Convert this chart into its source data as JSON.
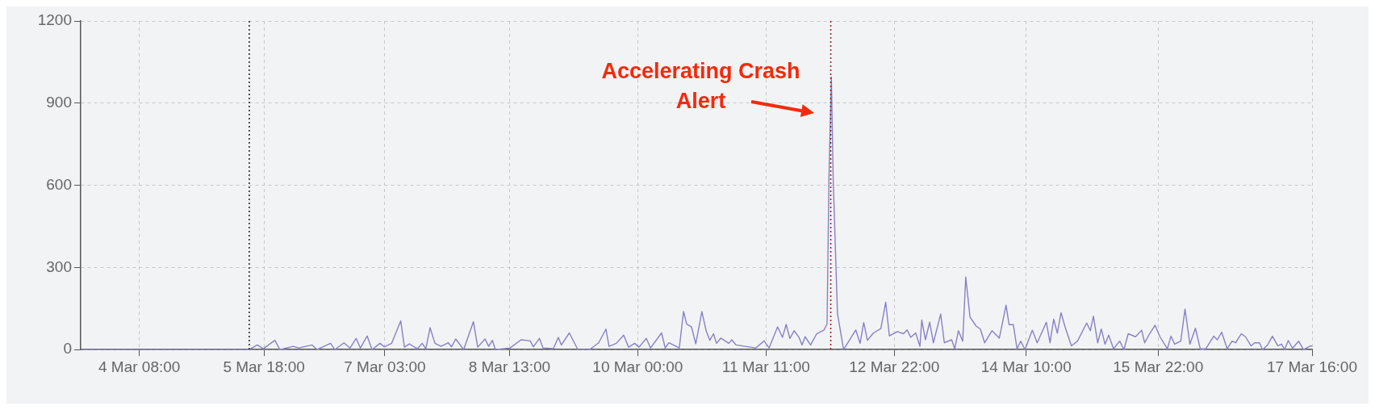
{
  "chart_data": {
    "type": "line",
    "color": "#8581c6",
    "x": [
      "--03-03T16:00",
      "--03-05T14:00",
      "--03-05T16:10",
      "--03-05T17:50",
      "--03-05T21:00",
      "--03-05T22:20",
      "--03-06T02:00",
      "--03-06T03:30",
      "--03-06T07:10",
      "--03-06T08:30",
      "--03-06T12:10",
      "--03-06T13:20",
      "--03-06T15:50",
      "--03-06T17:30",
      "--03-06T19:10",
      "--03-06T20:20",
      "--03-06T22:10",
      "--03-06T23:30",
      "--03-07T01:40",
      "--03-07T02:50",
      "--03-07T04:50",
      "--03-07T07:20",
      "--03-07T08:20",
      "--03-07T09:40",
      "--03-07T11:50",
      "--03-07T13:10",
      "--03-07T14:10",
      "--03-07T15:20",
      "--03-07T16:40",
      "--03-07T18:20",
      "--03-07T20:20",
      "--03-07T21:10",
      "--03-07T22:20",
      "--03-08T00:30",
      "--03-08T03:10",
      "--03-08T04:20",
      "--03-08T06:20",
      "--03-08T07:20",
      "--03-08T08:20",
      "--03-08T09:10",
      "--03-08T13:10",
      "--03-08T16:10",
      "--03-08T18:40",
      "--03-08T19:30",
      "--03-08T21:10",
      "--03-08T22:10",
      "--03-09T01:00",
      "--03-09T02:20",
      "--03-09T03:10",
      "--03-09T05:20",
      "--03-09T07:40",
      "--03-09T10:50",
      "--03-09T13:20",
      "--03-09T15:20",
      "--03-09T16:10",
      "--03-09T18:10",
      "--03-09T20:10",
      "--03-09T21:30",
      "--03-09T23:10",
      "--03-10T00:20",
      "--03-10T02:20",
      "--03-10T03:30",
      "--03-10T06:30",
      "--03-10T07:30",
      "--03-10T08:30",
      "--03-10T11:20",
      "--03-10T12:30",
      "--03-10T13:20",
      "--03-10T14:40",
      "--03-10T15:50",
      "--03-10T17:30",
      "--03-10T18:40",
      "--03-10T19:40",
      "--03-10T20:40",
      "--03-10T21:30",
      "--03-10T22:40",
      "--03-11T00:50",
      "--03-11T01:40",
      "--03-11T02:50",
      "--03-11T08:10",
      "--03-11T10:30",
      "--03-11T11:50",
      "--03-11T14:10",
      "--03-11T15:30",
      "--03-11T16:30",
      "--03-11T17:30",
      "--03-11T18:40",
      "--03-11T20:00",
      "--03-11T20:50",
      "--03-11T21:40",
      "--03-11T23:10",
      "--03-12T00:50",
      "--03-12T02:50",
      "--03-12T03:40",
      "--03-12T04:10",
      "--03-12T04:50",
      "--03-12T05:20",
      "--03-12T06:30",
      "--03-12T08:10",
      "--03-12T11:30",
      "--03-12T12:40",
      "--03-12T13:40",
      "--03-12T14:40",
      "--03-12T16:20",
      "--03-12T18:20",
      "--03-12T19:40",
      "--03-12T20:40",
      "--03-12T22:50",
      "--03-13T00:30",
      "--03-13T01:30",
      "--03-13T02:30",
      "--03-13T03:50",
      "--03-13T05:00",
      "--03-13T05:30",
      "--03-13T06:30",
      "--03-13T07:40",
      "--03-13T08:40",
      "--03-13T10:40",
      "--03-13T11:40",
      "--03-13T13:40",
      "--03-13T14:30",
      "--03-13T15:30",
      "--03-13T16:40",
      "--03-13T17:30",
      "--03-13T18:40",
      "--03-13T20:20",
      "--03-13T21:30",
      "--03-13T22:40",
      "--03-14T00:40",
      "--03-14T02:40",
      "--03-14T04:30",
      "--03-14T05:20",
      "--03-14T06:30",
      "--03-14T07:30",
      "--03-14T08:30",
      "--03-14T09:40",
      "--03-14T11:40",
      "--03-14T13:00",
      "--03-14T15:30",
      "--03-14T16:30",
      "--03-14T17:30",
      "--03-14T18:30",
      "--03-14T19:30",
      "--03-14T20:40",
      "--03-14T22:20",
      "--03-15T00:00",
      "--03-15T02:30",
      "--03-15T03:30",
      "--03-15T04:20",
      "--03-15T05:30",
      "--03-15T06:30",
      "--03-15T07:30",
      "--03-15T08:30",
      "--03-15T09:50",
      "--03-15T11:30",
      "--03-15T12:40",
      "--03-15T13:50",
      "--03-15T15:50",
      "--03-15T17:30",
      "--03-15T18:20",
      "--03-15T19:40",
      "--03-15T21:10",
      "--03-15T22:30",
      "--03-16T00:30",
      "--03-16T01:30",
      "--03-16T02:30",
      "--03-16T04:10",
      "--03-16T05:20",
      "--03-16T06:40",
      "--03-16T08:10",
      "--03-16T09:30",
      "--03-16T11:00",
      "--03-16T13:10",
      "--03-16T14:10",
      "--03-16T15:20",
      "--03-16T16:50",
      "--03-16T18:10",
      "--03-16T19:10",
      "--03-16T20:40",
      "--03-16T21:50",
      "--03-16T23:20",
      "--03-17T00:20",
      "--03-17T01:40",
      "--03-17T02:30",
      "--03-17T03:50",
      "--03-17T05:10",
      "--03-17T06:40",
      "--03-17T07:40",
      "--03-17T08:30",
      "--03-17T09:30",
      "--03-17T10:40",
      "--03-17T12:20",
      "--03-17T13:40",
      "--03-17T15:40",
      "--03-17T16:00"
    ],
    "values": [
      0,
      0,
      17,
      3,
      34,
      0,
      12,
      6,
      17,
      0,
      23,
      0,
      25,
      6,
      41,
      6,
      50,
      0,
      23,
      10,
      23,
      105,
      9,
      21,
      3,
      23,
      3,
      80,
      23,
      12,
      25,
      10,
      39,
      0,
      102,
      9,
      39,
      12,
      34,
      0,
      6,
      36,
      32,
      10,
      41,
      6,
      4,
      45,
      17,
      61,
      0,
      0,
      25,
      75,
      12,
      23,
      53,
      9,
      23,
      9,
      41,
      6,
      61,
      6,
      25,
      6,
      139,
      94,
      83,
      21,
      139,
      69,
      34,
      58,
      23,
      42,
      23,
      36,
      17,
      6,
      32,
      6,
      83,
      45,
      92,
      41,
      69,
      45,
      17,
      47,
      17,
      58,
      72,
      94,
      622,
      995,
      622,
      132,
      0,
      72,
      23,
      99,
      34,
      61,
      77,
      173,
      50,
      66,
      58,
      72,
      45,
      61,
      12,
      108,
      36,
      100,
      25,
      130,
      25,
      36,
      3,
      69,
      31,
      265,
      119,
      86,
      75,
      25,
      69,
      42,
      162,
      91,
      91,
      3,
      31,
      0,
      71,
      25,
      100,
      25,
      111,
      60,
      135,
      80,
      14,
      31,
      97,
      69,
      122,
      25,
      75,
      20,
      53,
      3,
      31,
      0,
      58,
      47,
      71,
      25,
      58,
      89,
      47,
      3,
      49,
      20,
      31,
      148,
      20,
      78,
      3,
      3,
      49,
      36,
      64,
      3,
      31,
      25,
      58,
      47,
      14,
      25,
      25,
      0,
      16,
      49,
      14,
      20,
      0,
      33,
      5,
      31,
      0,
      14,
      12
    ],
    "xlim": [
      "--03-03T16:00",
      "--03-17T16:00"
    ],
    "xticks": [
      {
        "value": "--03-04T08:00",
        "label": "4 Mar 08:00"
      },
      {
        "value": "--03-05T18:00",
        "label": "5 Mar 18:00"
      },
      {
        "value": "--03-07T03:00",
        "label": "7 Mar 03:00"
      },
      {
        "value": "--03-08T13:00",
        "label": "8 Mar 13:00"
      },
      {
        "value": "--03-10T00:00",
        "label": "10 Mar 00:00"
      },
      {
        "value": "--03-11T11:00",
        "label": "11 Mar 11:00"
      },
      {
        "value": "--03-12T22:00",
        "label": "12 Mar 22:00"
      },
      {
        "value": "--03-14T10:00",
        "label": "14 Mar 10:00"
      },
      {
        "value": "--03-15T22:00",
        "label": "15 Mar 22:00"
      },
      {
        "value": "--03-17T16:00",
        "label": "17 Mar 16:00"
      }
    ],
    "ylim": [
      0,
      1200
    ],
    "yticks": [
      0,
      300,
      600,
      900,
      1200
    ],
    "grid": true,
    "ref_lines": [
      {
        "axis": "x",
        "value": "--03-05T14:00",
        "color": "#1c1c2a",
        "line_style": "dotted"
      },
      {
        "axis": "x",
        "value": "--03-12T04:40",
        "color": "#8a1c1c",
        "line_style": "dotted"
      }
    ],
    "annotations": [
      "Accelerating Crash Alert"
    ]
  }
}
